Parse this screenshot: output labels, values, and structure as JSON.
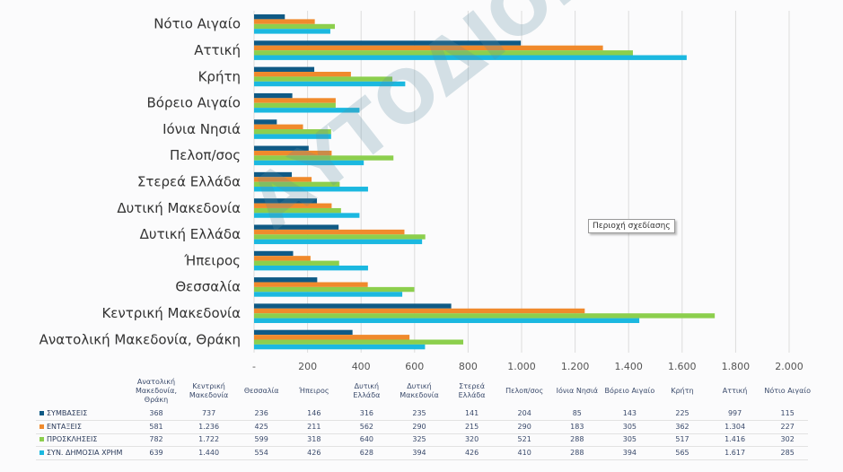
{
  "chart_data": {
    "type": "bar",
    "orientation": "horizontal",
    "categories": [
      "Ανατολική Μακεδονία, Θράκη",
      "Κεντρική Μακεδονία",
      "Θεσσαλία",
      "Ήπειρος",
      "Δυτική Ελλάδα",
      "Δυτική Μακεδονία",
      "Στερεά Ελλάδα",
      "Πελοπ/σος",
      "Ιόνια Νησιά",
      "Βόρειο Αιγαίο",
      "Κρήτη",
      "Αττική",
      "Νότιο Αιγαίο"
    ],
    "table_headers": [
      "Ανατολική Μακεδονία, Θράκη",
      "Κεντρική Μακεδονία",
      "Θεσσαλία",
      "Ήπειρος",
      "Δυτική Ελλάδα",
      "Δυτική Μακεδονία",
      "Στερεά Ελλάδα",
      "Πελοπ/σος",
      "Ιόνια Νησιά",
      "Βόρειο Αιγαίο",
      "Κρήτη",
      "Αττική",
      "Νότιο Αιγαίο"
    ],
    "series": [
      {
        "name": "ΣΥΜΒΑΣΕΙΣ",
        "color": "#0f5a85",
        "values": [
          368,
          737,
          236,
          146,
          316,
          235,
          141,
          204,
          85,
          143,
          225,
          997,
          115
        ],
        "labels": [
          "368",
          "737",
          "236",
          "146",
          "316",
          "235",
          "141",
          "204",
          "85",
          "143",
          "225",
          "997",
          "115"
        ]
      },
      {
        "name": "ΕΝΤΑΞΕΙΣ",
        "color": "#f08a2c",
        "values": [
          581,
          1236,
          425,
          211,
          562,
          290,
          215,
          290,
          183,
          305,
          362,
          1304,
          227
        ],
        "labels": [
          "581",
          "1.236",
          "425",
          "211",
          "562",
          "290",
          "215",
          "290",
          "183",
          "305",
          "362",
          "1.304",
          "227"
        ]
      },
      {
        "name": "ΠΡΟΣΚΛΗΣΕΙΣ",
        "color": "#8ccf4d",
        "values": [
          782,
          1722,
          599,
          318,
          640,
          325,
          320,
          521,
          288,
          305,
          517,
          1416,
          302
        ],
        "labels": [
          "782",
          "1.722",
          "599",
          "318",
          "640",
          "325",
          "320",
          "521",
          "288",
          "305",
          "517",
          "1.416",
          "302"
        ]
      },
      {
        "name": "ΣΥΝ. ΔΗΜΟΣΙΑ ΧΡΗΜ",
        "color": "#1bb8e0",
        "values": [
          639,
          1440,
          554,
          426,
          628,
          394,
          426,
          410,
          288,
          394,
          565,
          1617,
          285
        ],
        "labels": [
          "639",
          "1.440",
          "554",
          "426",
          "628",
          "394",
          "426",
          "410",
          "288",
          "394",
          "565",
          "1.617",
          "285"
        ]
      }
    ],
    "xlim": [
      0,
      2000
    ],
    "xticks": [
      "-",
      "200",
      "400",
      "600",
      "800",
      "1.000",
      "1.200",
      "1.400",
      "1.600",
      "1.800",
      "2.000"
    ],
    "grid": true,
    "legend": "data-table"
  },
  "tooltip": "Περιοχή σχεδίασης",
  "watermark": "ΑΥΤΟΔΙΟΙΚΗΣΗ aftodioikisi.gr"
}
